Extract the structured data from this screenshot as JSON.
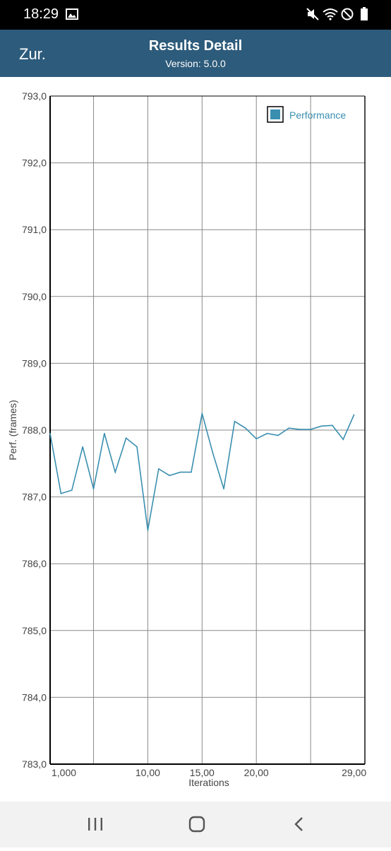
{
  "status_bar": {
    "time": "18:29"
  },
  "header": {
    "back_label": "Zur.",
    "title": "Results Detail",
    "subtitle": "Version: 5.0.0"
  },
  "colors": {
    "app_bar": "#2d5b7b",
    "series": "#3a8fb0",
    "legend_text": "#3a8fb0"
  },
  "chart_data": {
    "type": "line",
    "xlabel": "Iterations",
    "ylabel": "Perf. (frames)",
    "ylim": [
      783.0,
      793.0
    ],
    "xlim": [
      0,
      29
    ],
    "y_ticks": [
      "783,0",
      "784,0",
      "785,0",
      "786,0",
      "787,0",
      "788,0",
      "789,0",
      "790,0",
      "791,0",
      "792,0",
      "793,0"
    ],
    "x_ticks": [
      {
        "value": 0,
        "label": "1,000"
      },
      {
        "value": 9,
        "label": "10,00"
      },
      {
        "value": 14,
        "label": "15,00"
      },
      {
        "value": 19,
        "label": "20,00"
      },
      {
        "value": 28,
        "label": "29,00"
      }
    ],
    "grid": true,
    "legend_position": "top-right",
    "series": [
      {
        "name": "Performance",
        "x": [
          0,
          1,
          2,
          3,
          4,
          5,
          6,
          7,
          8,
          9,
          10,
          11,
          12,
          13,
          14,
          15,
          16,
          17,
          18,
          19,
          20,
          21,
          22,
          23,
          24,
          25,
          26,
          27,
          28
        ],
        "values": [
          787.95,
          787.05,
          787.1,
          787.75,
          787.12,
          787.95,
          787.37,
          787.88,
          787.75,
          786.5,
          787.42,
          787.32,
          787.37,
          787.37,
          788.25,
          787.65,
          787.12,
          788.13,
          788.03,
          787.87,
          787.95,
          787.92,
          788.03,
          788.01,
          788.01,
          788.06,
          788.07,
          787.86,
          788.23
        ]
      }
    ]
  }
}
